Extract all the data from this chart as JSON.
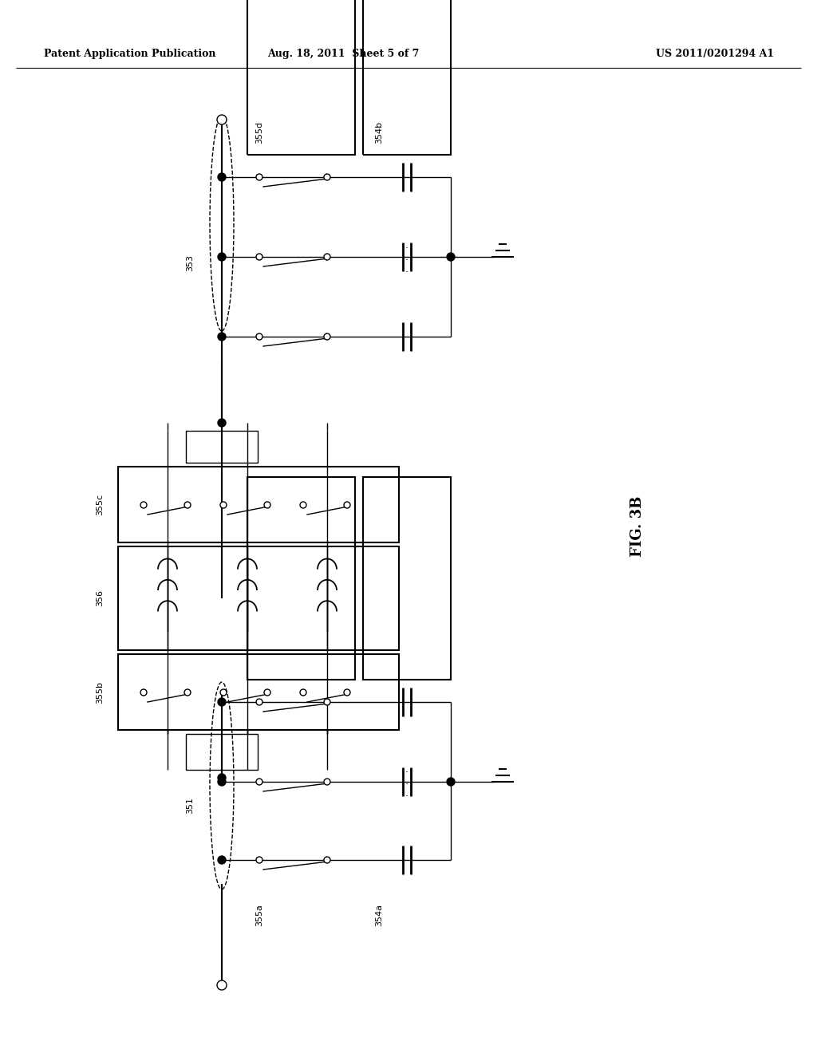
{
  "header_left": "Patent Application Publication",
  "header_center": "Aug. 18, 2011  Sheet 5 of 7",
  "header_right": "US 2011/0201294 A1",
  "fig_label": "FIG. 3B",
  "label_353": "353",
  "label_351": "351",
  "label_355d": "355d",
  "label_354b": "354b",
  "label_355c": "355c",
  "label_356": "356",
  "label_355b": "355b",
  "label_355a": "355a",
  "label_354a": "354a",
  "bg_color": "#ffffff",
  "fg_color": "#000000"
}
